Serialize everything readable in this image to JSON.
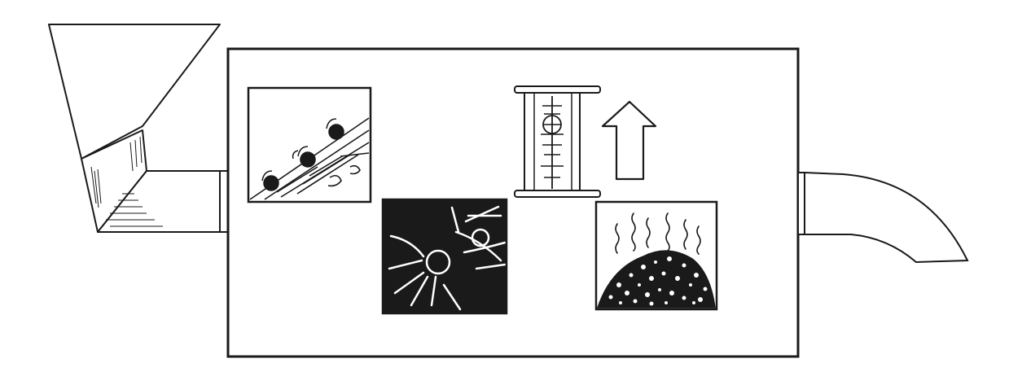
{
  "diagram": {
    "stroke_color": "#1a1a1a",
    "fill_color": "#ffffff",
    "components": [
      {
        "id": "feed-hopper",
        "icon": "hopper-icon"
      },
      {
        "id": "inlet-pipe",
        "icon": "pipe-icon"
      },
      {
        "id": "machine-housing",
        "icon": "box-outline"
      },
      {
        "id": "conveyor-panel",
        "icon": "conveyor-icon"
      },
      {
        "id": "gear-crusher-panel",
        "icon": "gear-icon"
      },
      {
        "id": "separator-panel",
        "icon": "cylinder-separator-icon"
      },
      {
        "id": "flow-arrow",
        "icon": "up-arrow-icon"
      },
      {
        "id": "heated-pile-panel",
        "icon": "heap-with-steam-icon"
      },
      {
        "id": "outlet-spout",
        "icon": "curved-spout-icon"
      }
    ]
  }
}
